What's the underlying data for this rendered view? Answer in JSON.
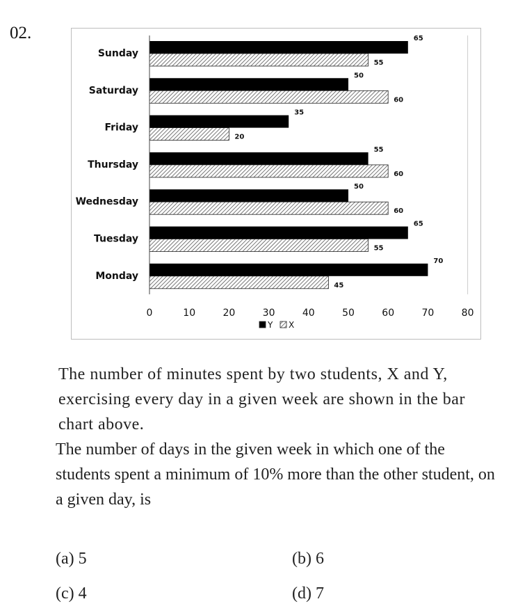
{
  "question_number": "02.",
  "chart_data": {
    "type": "bar",
    "orientation": "horizontal",
    "categories": [
      "Sunday",
      "Saturday",
      "Friday",
      "Thursday",
      "Wednesday",
      "Tuesday",
      "Monday"
    ],
    "series": [
      {
        "name": "Y",
        "values": [
          65,
          50,
          35,
          55,
          50,
          65,
          70
        ],
        "color": "#000000",
        "fill": "solid"
      },
      {
        "name": "X",
        "values": [
          55,
          60,
          20,
          60,
          60,
          55,
          45
        ],
        "color": "#ffffff",
        "fill": "hatched"
      }
    ],
    "xlim": [
      0,
      80
    ],
    "xticks": [
      "0",
      "10",
      "20",
      "30",
      "40",
      "50",
      "60",
      "70",
      "80"
    ],
    "title": "",
    "xlabel": "",
    "ylabel": "",
    "grid": false,
    "legend_placement": "bottom"
  },
  "question": {
    "paragraph1": "The number of minutes spent by two students, X and Y, exercising every day in a given week are shown in the bar chart above.",
    "paragraph2": "The number of days in the given week in which one of the students spent a minimum of 10% more than the other student, on a given day, is"
  },
  "options": {
    "a": "(a) 5",
    "b": "(b) 6",
    "c": "(c) 4",
    "d": "(d) 7"
  }
}
